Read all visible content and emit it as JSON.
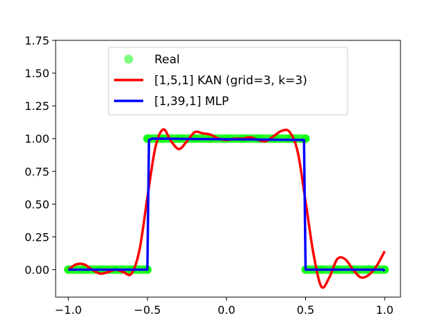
{
  "chart_data": {
    "type": "line",
    "title": "",
    "xlabel": "",
    "ylabel": "",
    "xlim": [
      -1.08,
      1.1
    ],
    "ylim": [
      -0.21,
      1.75
    ],
    "xticks": [
      -1.0,
      -0.5,
      0.0,
      0.5,
      1.0
    ],
    "xtick_labels": [
      "−1.0",
      "−0.5",
      "0.0",
      "0.5",
      "1.0"
    ],
    "yticks": [
      0.0,
      0.25,
      0.5,
      0.75,
      1.0,
      1.25,
      1.5,
      1.75
    ],
    "ytick_labels": [
      "0.00",
      "0.25",
      "0.50",
      "0.75",
      "1.00",
      "1.25",
      "1.50",
      "1.75"
    ],
    "grid": false,
    "legend_position": "upper-center",
    "series": [
      {
        "name": "Real",
        "style": "points",
        "color": "#00ff00",
        "x": [
          -1.0,
          -0.9,
          -0.8,
          -0.7,
          -0.6,
          -0.5,
          -0.5,
          -0.4,
          -0.3,
          -0.2,
          -0.1,
          0.0,
          0.1,
          0.2,
          0.3,
          0.4,
          0.5,
          0.5,
          0.6,
          0.7,
          0.8,
          0.9,
          1.0
        ],
        "y": [
          0,
          0,
          0,
          0,
          0,
          0,
          1,
          1,
          1,
          1,
          1,
          1,
          1,
          1,
          1,
          1,
          1,
          0,
          0,
          0,
          0,
          0,
          0
        ]
      },
      {
        "name": "[1,5,1] KAN (grid=3, k=3)",
        "style": "line",
        "color": "#ff0000",
        "x": [
          -1.0,
          -0.95,
          -0.9,
          -0.85,
          -0.8,
          -0.75,
          -0.7,
          -0.65,
          -0.6,
          -0.55,
          -0.5,
          -0.45,
          -0.4,
          -0.35,
          -0.3,
          -0.25,
          -0.2,
          -0.15,
          -0.1,
          -0.05,
          0.0,
          0.05,
          0.1,
          0.15,
          0.2,
          0.25,
          0.3,
          0.35,
          0.4,
          0.45,
          0.5,
          0.55,
          0.6,
          0.65,
          0.7,
          0.75,
          0.8,
          0.85,
          0.9,
          0.95,
          1.0
        ],
        "y": [
          0.0,
          0.04,
          0.04,
          0.0,
          -0.03,
          -0.02,
          0.0,
          -0.02,
          -0.03,
          0.15,
          0.55,
          0.93,
          1.07,
          0.98,
          0.92,
          0.98,
          1.05,
          1.04,
          1.03,
          1.0,
          0.99,
          1.0,
          1.0,
          1.01,
          0.99,
          0.98,
          1.02,
          1.06,
          1.05,
          0.9,
          0.52,
          0.12,
          -0.13,
          -0.06,
          0.08,
          0.08,
          0.0,
          -0.06,
          -0.04,
          0.03,
          0.14
        ]
      },
      {
        "name": "[1,39,1] MLP",
        "style": "line",
        "color": "#0000ff",
        "x": [
          -1.0,
          -0.5,
          -0.49,
          -0.47,
          -0.45,
          0.49,
          0.5,
          0.51,
          0.99,
          1.0
        ],
        "y": [
          0.0,
          0.0,
          0.99,
          1.0,
          1.0,
          0.99,
          0.0,
          0.0,
          0.0,
          -0.01
        ]
      }
    ]
  }
}
